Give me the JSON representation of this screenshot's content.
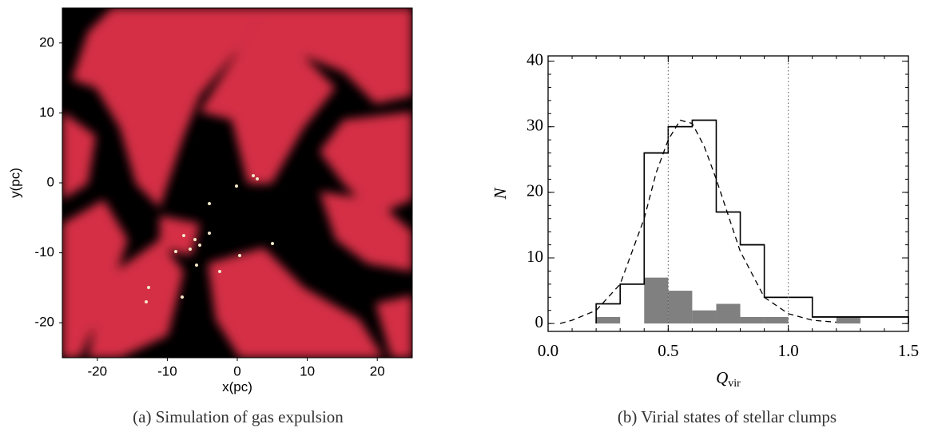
{
  "chart_data": [
    {
      "type": "image",
      "xlabel": "x(pc)",
      "ylabel": "y(pc)",
      "xlim": [
        -25,
        25
      ],
      "ylim": [
        -25,
        25
      ],
      "xticks": [
        -20,
        -10,
        0,
        10,
        20
      ],
      "yticks": [
        -20,
        -10,
        0,
        10,
        20
      ],
      "caption": "(a) Simulation of gas expulsion"
    },
    {
      "type": "histogram",
      "xlabel": "Q",
      "xlabel_sub": "vir",
      "ylabel": "N",
      "xlim": [
        0,
        1.5
      ],
      "ylim": [
        -1.2,
        40.8
      ],
      "xticks": [
        {
          "value": 0,
          "label": "0.0"
        },
        0.5,
        {
          "value": 1,
          "label": "1.0"
        },
        1.5
      ],
      "yticks": [
        0,
        10,
        20,
        30,
        40
      ],
      "vlines": [
        0.5,
        1.0
      ],
      "series": [
        {
          "style": "filled",
          "color": "#808080",
          "bins": [
            0.2,
            0.3,
            0.4,
            0.5,
            0.6,
            0.7,
            0.8,
            0.9,
            1.0,
            1.1,
            1.2,
            1.3
          ],
          "values": [
            1,
            0,
            7,
            5,
            2,
            3,
            1,
            1,
            0,
            0,
            1
          ]
        },
        {
          "style": "step",
          "color": "#000000",
          "bins": [
            0.2,
            0.3,
            0.4,
            0.5,
            0.6,
            0.7,
            0.8,
            0.9,
            1.0,
            1.1,
            1.5
          ],
          "values": [
            3,
            6,
            26,
            30,
            31,
            17,
            12,
            4,
            4,
            1
          ]
        }
      ],
      "curve": {
        "style": "dashed",
        "color": "#000000",
        "x": [
          0.05,
          0.1,
          0.2,
          0.3,
          0.4,
          0.45,
          0.5,
          0.55,
          0.6,
          0.65,
          0.7,
          0.8,
          0.9,
          1.0,
          1.1,
          1.2
        ],
        "values": [
          0,
          0.5,
          2,
          6,
          16,
          23,
          28,
          31,
          30.5,
          27,
          22,
          11,
          4,
          1.5,
          0.5,
          0.2
        ]
      },
      "caption": "(b) Virial states of stellar clumps"
    }
  ]
}
